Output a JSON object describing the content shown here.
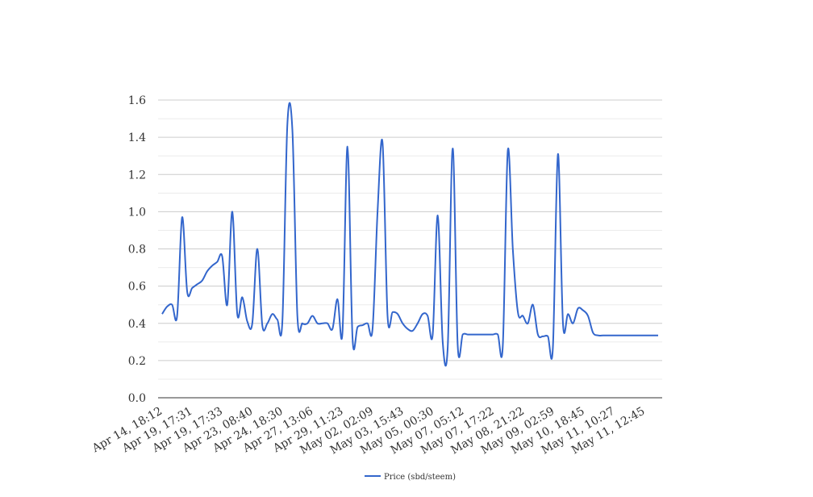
{
  "chart_data": {
    "type": "line",
    "title": "",
    "xlabel": "",
    "ylabel": "",
    "ylim": [
      0,
      1.6
    ],
    "yticks": [
      "0.0",
      "0.2",
      "0.4",
      "0.6",
      "0.8",
      "1.0",
      "1.2",
      "1.4",
      "1.6"
    ],
    "grid": true,
    "legend_position": "bottom",
    "x_ticks": [
      "Apr 14, 18:12",
      "Apr 19, 17:31",
      "Apr 19, 17:33",
      "Apr 23, 08:40",
      "Apr 24, 18:30",
      "Apr 27, 13:06",
      "Apr 29, 11:23",
      "May 02, 02:09",
      "May 03, 15:43",
      "May 05, 00:30",
      "May 07, 05:12",
      "May 07, 17:22",
      "May 08, 21:22",
      "May 09, 02:59",
      "May 10, 18:45",
      "May 11, 10:27",
      "May 11, 12:45"
    ],
    "series": [
      {
        "name": "Price (sbd/steem)",
        "color": "#3366cc",
        "values": [
          0.45,
          0.49,
          0.5,
          0.44,
          0.97,
          0.57,
          0.59,
          0.61,
          0.63,
          0.68,
          0.71,
          0.73,
          0.76,
          0.5,
          1.0,
          0.45,
          0.54,
          0.41,
          0.4,
          0.8,
          0.39,
          0.4,
          0.45,
          0.42,
          0.41,
          1.47,
          1.44,
          0.44,
          0.4,
          0.4,
          0.44,
          0.4,
          0.4,
          0.4,
          0.37,
          0.53,
          0.35,
          1.35,
          0.32,
          0.38,
          0.39,
          0.4,
          0.37,
          1.0,
          1.37,
          0.44,
          0.46,
          0.45,
          0.4,
          0.37,
          0.36,
          0.4,
          0.45,
          0.44,
          0.34,
          0.98,
          0.3,
          0.27,
          1.34,
          0.28,
          0.34,
          0.34,
          0.34,
          0.34,
          0.34,
          0.34,
          0.34,
          0.34,
          0.28,
          1.33,
          0.8,
          0.46,
          0.44,
          0.4,
          0.5,
          0.34,
          0.33,
          0.33,
          0.27,
          1.31,
          0.4,
          0.45,
          0.4,
          0.48,
          0.47,
          0.44,
          0.35,
          0.335,
          0.335,
          0.335,
          0.335,
          0.335,
          0.335,
          0.335,
          0.335,
          0.335,
          0.335,
          0.335,
          0.335,
          0.335
        ]
      }
    ]
  }
}
